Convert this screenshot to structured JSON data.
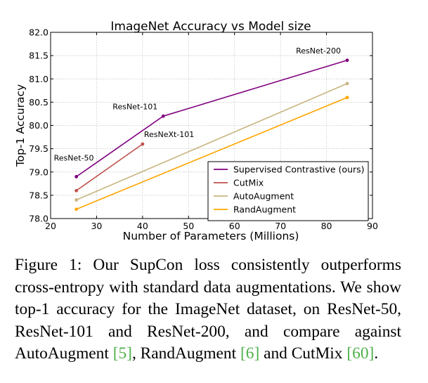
{
  "chart_data": {
    "type": "line",
    "title": "ImageNet Accuracy vs Model size",
    "xlabel": "Number of Parameters (Millions)",
    "ylabel": "Top-1 Accuracy",
    "xlim": [
      20,
      90
    ],
    "ylim": [
      78.0,
      82.0
    ],
    "xticks": [
      20,
      30,
      40,
      50,
      60,
      70,
      80,
      90
    ],
    "yticks": [
      "78.0",
      "78.5",
      "79.0",
      "79.5",
      "80.0",
      "80.5",
      "81.0",
      "81.5",
      "82.0"
    ],
    "grid": true,
    "legend_position": "lower-right",
    "series": [
      {
        "name": "Supervised Contrastive (ours)",
        "color": "#800080",
        "x": [
          25.6,
          44.5,
          84.5
        ],
        "y": [
          78.9,
          80.2,
          81.4
        ]
      },
      {
        "name": "CutMix",
        "color": "#c0504d",
        "x": [
          25.6,
          40.0
        ],
        "y": [
          78.6,
          79.6
        ]
      },
      {
        "name": "AutoAugment",
        "color": "#c9b47f",
        "x": [
          25.6,
          84.5
        ],
        "y": [
          78.4,
          80.9
        ]
      },
      {
        "name": "RandAugment",
        "color": "#ffa500",
        "x": [
          25.6,
          84.5
        ],
        "y": [
          78.2,
          80.6
        ]
      }
    ],
    "annotations": [
      {
        "text": "ResNet-50",
        "x": 25.6,
        "y": 78.9
      },
      {
        "text": "ResNet-101",
        "x": 44.5,
        "y": 80.2
      },
      {
        "text": "ResNeXt-101",
        "x": 40.0,
        "y": 79.6
      },
      {
        "text": "ResNet-200",
        "x": 84.5,
        "y": 81.4
      }
    ]
  },
  "caption": {
    "label": "Figure 1:",
    "text_before_refs": " Our SupCon loss consistently outperforms cross-entropy with standard data augmentations. We show top-1 accuracy for the ImageNet dataset, on ResNet-50, ResNet-101 and ResNet-200, and compare against AutoAugment ",
    "ref_autoaugment": "[5]",
    "text_mid_1": ", RandAugment ",
    "ref_randaugment": "[6]",
    "text_mid_2": " and CutMix ",
    "ref_cutmix": "[60]",
    "text_end": "."
  }
}
